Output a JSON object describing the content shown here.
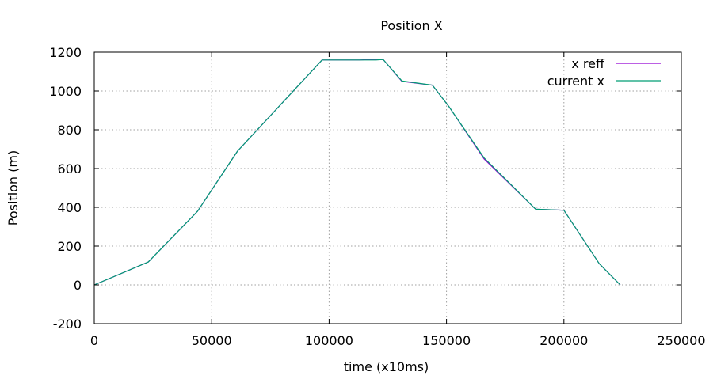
{
  "chart_data": {
    "type": "line",
    "title": "Position X",
    "xlabel": "time (x10ms)",
    "ylabel": "Position (m)",
    "xlim": [
      0,
      250000
    ],
    "ylim": [
      -200,
      1200
    ],
    "xticks": [
      0,
      50000,
      100000,
      150000,
      200000,
      250000
    ],
    "yticks": [
      -200,
      0,
      200,
      400,
      600,
      800,
      1000,
      1200
    ],
    "xtick_labels": [
      "0",
      "50000",
      "100000",
      "150000",
      "200000",
      "250000"
    ],
    "ytick_labels": [
      "-200",
      "0",
      "200",
      "400",
      "600",
      "800",
      "1000",
      "1200"
    ],
    "grid": true,
    "legend_position": "top-right",
    "series": [
      {
        "name": "x reff",
        "color": "#9400d3",
        "x": [
          0,
          23000,
          44000,
          61000,
          97000,
          113000,
          116000,
          120000,
          123000,
          131000,
          144000,
          151000,
          166000,
          188000,
          200000,
          215000,
          224000
        ],
        "y": [
          0,
          118,
          380,
          690,
          1160,
          1160,
          1162,
          1162,
          1163,
          1050,
          1030,
          920,
          650,
          390,
          385,
          110,
          0
        ]
      },
      {
        "name": "current x",
        "color": "#009e73",
        "x": [
          0,
          23000,
          44000,
          61000,
          97000,
          113000,
          116000,
          120000,
          123000,
          131000,
          144000,
          151000,
          166000,
          188000,
          200000,
          215000,
          224000
        ],
        "y": [
          0,
          118,
          380,
          690,
          1160,
          1160,
          1160,
          1160,
          1163,
          1052,
          1030,
          920,
          655,
          390,
          385,
          110,
          0
        ]
      }
    ]
  }
}
